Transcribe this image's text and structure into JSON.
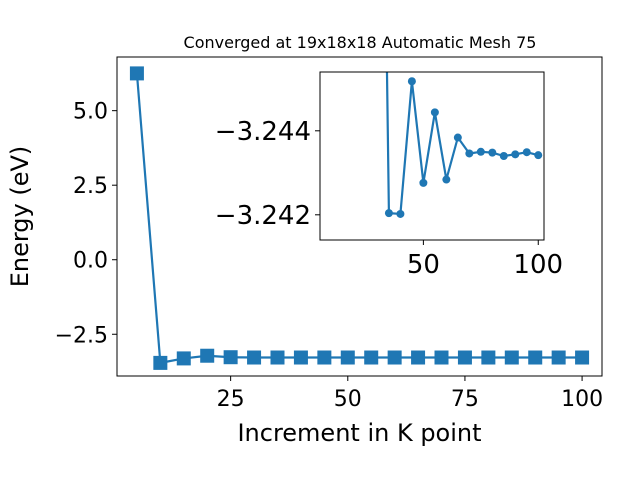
{
  "chart_data": [
    {
      "type": "line",
      "title": "Converged at 19x18x18 Automatic Mesh 75",
      "xlabel": "Increment in K point",
      "ylabel": "Energy (eV)",
      "xlim": [
        0.75,
        104.25
      ],
      "ylim": [
        -3.9,
        6.8
      ],
      "xticks": [
        25,
        50,
        75,
        100
      ],
      "yticks": [
        5.0,
        2.5,
        0.0,
        -2.5
      ],
      "xtick_labels": [
        "25",
        "50",
        "75",
        "100"
      ],
      "ytick_labels": [
        "5.0",
        "2.5",
        "0.0",
        "−2.5"
      ],
      "grid": false,
      "marker": "square",
      "color": "#1f77b4",
      "series": [
        {
          "x": [
            5,
            10,
            15,
            20,
            25,
            30,
            35,
            40,
            45,
            50,
            55,
            60,
            65,
            70,
            75,
            80,
            85,
            90,
            95,
            100
          ],
          "y": [
            6.25,
            -3.46,
            -3.31,
            -3.22,
            -3.27,
            -3.28,
            -3.28,
            -3.28,
            -3.28,
            -3.28,
            -3.28,
            -3.28,
            -3.28,
            -3.28,
            -3.28,
            -3.28,
            -3.28,
            -3.28,
            -3.28,
            -3.28
          ]
        }
      ]
    },
    {
      "type": "line",
      "title": "",
      "xlabel": "",
      "ylabel": "",
      "xlim": [
        5,
        102.5
      ],
      "ylim": [
        -3.2414,
        -3.2454
      ],
      "xticks": [
        50,
        100
      ],
      "yticks": [
        -3.244,
        -3.242
      ],
      "xtick_labels": [
        "50",
        "100"
      ],
      "ytick_labels": [
        "−3.244",
        "−3.242"
      ],
      "grid": false,
      "marker": "circle",
      "color": "#1f77b4",
      "series": [
        {
          "x": [
            35,
            40,
            45,
            50,
            55,
            60,
            65,
            70,
            75,
            80,
            85,
            90,
            95,
            100
          ],
          "y": [
            -3.24204,
            -3.24202,
            -3.24518,
            -3.24276,
            -3.24444,
            -3.24284,
            -3.24384,
            -3.24346,
            -3.2435,
            -3.24348,
            -3.2434,
            -3.24344,
            -3.24349,
            -3.24342
          ]
        }
      ],
      "line_x_start": [
        33.5,
        -3.248
      ]
    }
  ]
}
